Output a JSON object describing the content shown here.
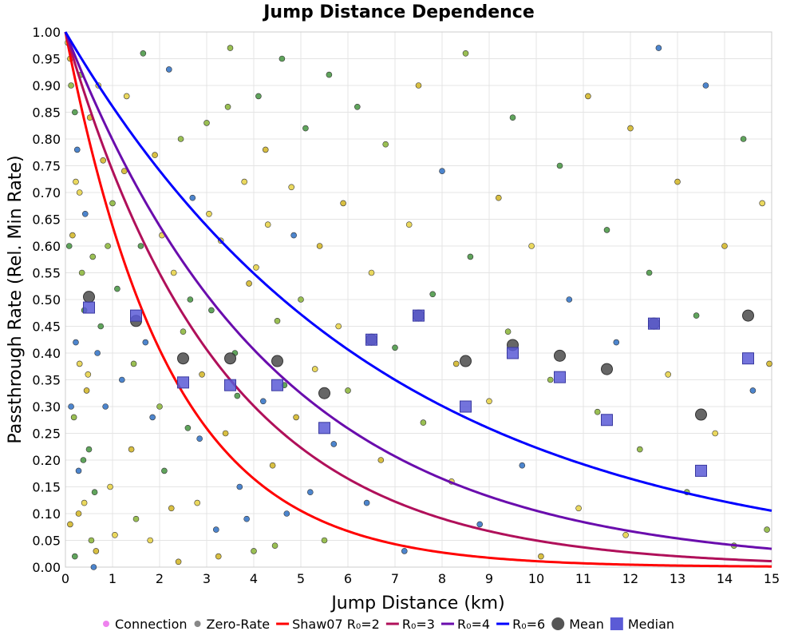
{
  "chart_data": {
    "type": "scatter",
    "title": "Jump Distance Dependence",
    "xlabel": "Jump Distance (km)",
    "ylabel": "Passthrough Rate (Rel. Min Rate)",
    "xlim": [
      0,
      15
    ],
    "ylim": [
      0,
      1
    ],
    "grid": true,
    "legend_position": "bottom",
    "x_ticks": [
      "0",
      "1",
      "2",
      "3",
      "4",
      "5",
      "6",
      "7",
      "8",
      "9",
      "10",
      "11",
      "12",
      "13",
      "14",
      "15"
    ],
    "y_ticks": [
      "0.00",
      "0.05",
      "0.10",
      "0.15",
      "0.20",
      "0.25",
      "0.30",
      "0.35",
      "0.40",
      "0.45",
      "0.50",
      "0.55",
      "0.60",
      "0.65",
      "0.70",
      "0.75",
      "0.80",
      "0.85",
      "0.90",
      "0.95",
      "1.00"
    ],
    "legend": [
      {
        "label": "Connection",
        "marker": "dot",
        "color": "#ee82ee"
      },
      {
        "label": "Zero-Rate",
        "marker": "dot",
        "color": "#888888"
      },
      {
        "label": "Shaw07 R₀=2",
        "marker": "line",
        "color": "#ff0000"
      },
      {
        "label": "R₀=3",
        "marker": "line",
        "color": "#b0105a"
      },
      {
        "label": "R₀=4",
        "marker": "line",
        "color": "#6a0dad"
      },
      {
        "label": "R₀=6",
        "marker": "line",
        "color": "#0000ff"
      },
      {
        "label": "Mean",
        "marker": "circle",
        "color": "#555555"
      },
      {
        "label": "Median",
        "marker": "square",
        "color": "#5b5bd6"
      }
    ],
    "curves": [
      {
        "name": "Shaw07 R₀=2",
        "R0": 2,
        "color": "#ff0000"
      },
      {
        "name": "R₀=3",
        "R0": 3,
        "color": "#b0105a"
      },
      {
        "name": "R₀=4",
        "R0": 4,
        "color": "#6a0dad"
      },
      {
        "name": "R₀=6",
        "R0": 6,
        "color": "#0000ff"
      }
    ],
    "mean": {
      "x": [
        0.5,
        1.5,
        2.5,
        3.5,
        4.5,
        5.5,
        6.5,
        7.5,
        8.5,
        9.5,
        10.5,
        11.5,
        12.5,
        13.5,
        14.5
      ],
      "y": [
        0.505,
        0.46,
        0.39,
        0.39,
        0.385,
        0.325,
        0.425,
        0.47,
        0.385,
        0.415,
        0.395,
        0.37,
        0.455,
        0.285,
        0.47
      ]
    },
    "median": {
      "x": [
        0.5,
        1.5,
        2.5,
        3.5,
        4.5,
        5.5,
        6.5,
        7.5,
        8.5,
        9.5,
        10.5,
        11.5,
        12.5,
        13.5,
        14.5
      ],
      "y": [
        0.485,
        0.47,
        0.345,
        0.34,
        0.34,
        0.26,
        0.425,
        0.47,
        0.3,
        0.4,
        0.355,
        0.275,
        0.455,
        0.18,
        0.39
      ]
    },
    "scatter_points": [
      [
        0.05,
        0.98
      ],
      [
        0.1,
        0.95
      ],
      [
        0.12,
        0.9
      ],
      [
        0.2,
        0.85
      ],
      [
        0.25,
        0.78
      ],
      [
        0.3,
        0.7
      ],
      [
        0.15,
        0.62
      ],
      [
        0.35,
        0.55
      ],
      [
        0.4,
        0.48
      ],
      [
        0.22,
        0.42
      ],
      [
        0.3,
        0.38
      ],
      [
        0.45,
        0.33
      ],
      [
        0.18,
        0.28
      ],
      [
        0.5,
        0.22
      ],
      [
        0.28,
        0.18
      ],
      [
        0.4,
        0.12
      ],
      [
        0.1,
        0.08
      ],
      [
        0.55,
        0.05
      ],
      [
        0.2,
        0.02
      ],
      [
        0.6,
        0.0
      ],
      [
        0.7,
        0.9
      ],
      [
        0.8,
        0.76
      ],
      [
        0.9,
        0.6
      ],
      [
        0.75,
        0.45
      ],
      [
        0.85,
        0.3
      ],
      [
        0.95,
        0.15
      ],
      [
        0.65,
        0.03
      ],
      [
        1.0,
        0.68
      ],
      [
        1.1,
        0.52
      ],
      [
        1.2,
        0.35
      ],
      [
        1.3,
        0.88
      ],
      [
        1.4,
        0.22
      ],
      [
        1.5,
        0.09
      ],
      [
        1.6,
        0.6
      ],
      [
        1.7,
        0.42
      ],
      [
        1.8,
        0.05
      ],
      [
        1.9,
        0.77
      ],
      [
        2.0,
        0.3
      ],
      [
        2.1,
        0.18
      ],
      [
        2.2,
        0.93
      ],
      [
        2.3,
        0.55
      ],
      [
        2.4,
        0.01
      ],
      [
        2.5,
        0.44
      ],
      [
        2.6,
        0.26
      ],
      [
        2.7,
        0.69
      ],
      [
        2.8,
        0.12
      ],
      [
        2.9,
        0.36
      ],
      [
        3.0,
        0.83
      ],
      [
        3.1,
        0.48
      ],
      [
        3.2,
        0.07
      ],
      [
        3.3,
        0.61
      ],
      [
        3.4,
        0.25
      ],
      [
        3.5,
        0.97
      ],
      [
        3.6,
        0.4
      ],
      [
        3.7,
        0.15
      ],
      [
        3.8,
        0.72
      ],
      [
        3.9,
        0.53
      ],
      [
        4.0,
        0.03
      ],
      [
        4.1,
        0.88
      ],
      [
        4.2,
        0.31
      ],
      [
        4.3,
        0.64
      ],
      [
        4.4,
        0.19
      ],
      [
        4.5,
        0.46
      ],
      [
        4.6,
        0.95
      ],
      [
        4.7,
        0.1
      ],
      [
        4.8,
        0.71
      ],
      [
        4.9,
        0.28
      ],
      [
        5.0,
        0.5
      ],
      [
        5.1,
        0.82
      ],
      [
        5.2,
        0.14
      ],
      [
        5.3,
        0.37
      ],
      [
        5.4,
        0.6
      ],
      [
        5.5,
        0.05
      ],
      [
        5.6,
        0.92
      ],
      [
        5.7,
        0.23
      ],
      [
        5.8,
        0.45
      ],
      [
        5.9,
        0.68
      ],
      [
        6.0,
        0.33
      ],
      [
        6.2,
        0.86
      ],
      [
        6.4,
        0.12
      ],
      [
        6.5,
        0.55
      ],
      [
        6.7,
        0.2
      ],
      [
        6.8,
        0.79
      ],
      [
        7.0,
        0.41
      ],
      [
        7.2,
        0.03
      ],
      [
        7.3,
        0.64
      ],
      [
        7.5,
        0.9
      ],
      [
        7.6,
        0.27
      ],
      [
        7.8,
        0.51
      ],
      [
        8.0,
        0.74
      ],
      [
        8.2,
        0.16
      ],
      [
        8.3,
        0.38
      ],
      [
        8.5,
        0.96
      ],
      [
        8.6,
        0.58
      ],
      [
        8.8,
        0.08
      ],
      [
        9.0,
        0.31
      ],
      [
        9.2,
        0.69
      ],
      [
        9.4,
        0.44
      ],
      [
        9.5,
        0.84
      ],
      [
        9.7,
        0.19
      ],
      [
        9.9,
        0.6
      ],
      [
        10.1,
        0.02
      ],
      [
        10.3,
        0.35
      ],
      [
        10.5,
        0.75
      ],
      [
        10.7,
        0.5
      ],
      [
        10.9,
        0.11
      ],
      [
        11.1,
        0.88
      ],
      [
        11.3,
        0.29
      ],
      [
        11.5,
        0.63
      ],
      [
        11.7,
        0.42
      ],
      [
        11.9,
        0.06
      ],
      [
        12.0,
        0.82
      ],
      [
        12.2,
        0.22
      ],
      [
        12.4,
        0.55
      ],
      [
        12.6,
        0.97
      ],
      [
        12.8,
        0.36
      ],
      [
        13.0,
        0.72
      ],
      [
        13.2,
        0.14
      ],
      [
        13.4,
        0.47
      ],
      [
        13.6,
        0.9
      ],
      [
        13.8,
        0.25
      ],
      [
        14.0,
        0.6
      ],
      [
        14.2,
        0.04
      ],
      [
        14.4,
        0.8
      ],
      [
        14.6,
        0.33
      ],
      [
        14.8,
        0.68
      ],
      [
        14.95,
        0.38
      ],
      [
        14.9,
        0.07
      ],
      [
        0.08,
        0.6
      ],
      [
        0.12,
        0.3
      ],
      [
        0.22,
        0.72
      ],
      [
        0.28,
        0.1
      ],
      [
        0.33,
        0.92
      ],
      [
        0.38,
        0.2
      ],
      [
        0.42,
        0.66
      ],
      [
        0.48,
        0.36
      ],
      [
        0.52,
        0.84
      ],
      [
        0.58,
        0.58
      ],
      [
        0.62,
        0.14
      ],
      [
        0.68,
        0.4
      ],
      [
        1.05,
        0.06
      ],
      [
        1.25,
        0.74
      ],
      [
        1.45,
        0.38
      ],
      [
        1.65,
        0.96
      ],
      [
        1.85,
        0.28
      ],
      [
        2.05,
        0.62
      ],
      [
        2.25,
        0.11
      ],
      [
        2.45,
        0.8
      ],
      [
        2.65,
        0.5
      ],
      [
        2.85,
        0.24
      ],
      [
        3.05,
        0.66
      ],
      [
        3.25,
        0.02
      ],
      [
        3.45,
        0.86
      ],
      [
        3.65,
        0.32
      ],
      [
        3.85,
        0.09
      ],
      [
        4.05,
        0.56
      ],
      [
        4.25,
        0.78
      ],
      [
        4.45,
        0.04
      ],
      [
        4.65,
        0.34
      ],
      [
        4.85,
        0.62
      ]
    ],
    "scatter_colors": [
      "#e8d44d",
      "#d4b82e",
      "#8fb840",
      "#4f9a4a",
      "#3a78c8"
    ]
  }
}
